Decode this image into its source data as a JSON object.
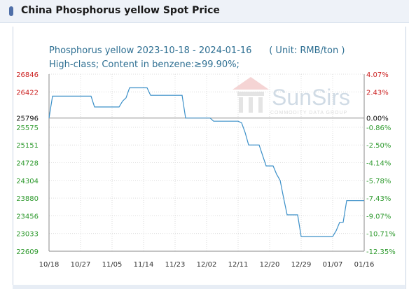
{
  "page": {
    "title": "China Phosphorus yellow Spot Price"
  },
  "chart_data": {
    "type": "line",
    "title": "Phosphorus yellow 2023-10-18 - 2024-01-16      ( Unit: RMB/ton )",
    "subtitle": "High-class; Content in benzene:≥99.90%;",
    "watermark": {
      "brand": "SunSirs",
      "tagline": "COMMODITY DATA GROUP"
    },
    "base_value": 25796,
    "x_ticks": [
      "10/18",
      "10/27",
      "11/05",
      "11/14",
      "11/23",
      "12/02",
      "12/11",
      "12/20",
      "12/29",
      "01/07",
      "01/16"
    ],
    "y_ticks_left": [
      "26846",
      "26422",
      "25796",
      "25575",
      "25151",
      "24728",
      "24304",
      "23880",
      "23456",
      "23033",
      "22609"
    ],
    "y_ticks_right": [
      "4.07%",
      "2.43%",
      "0.00%",
      "-0.86%",
      "-2.50%",
      "-4.14%",
      "-5.78%",
      "-7.43%",
      "-9.07%",
      "-10.71%",
      "-12.35%"
    ],
    "ylim": [
      22609,
      26846
    ],
    "xlim": [
      "2023-10-18",
      "2024-01-16"
    ],
    "grid": true,
    "colors": {
      "line": "#3a8fc8",
      "up_label": "#cc2222",
      "down_label": "#2e9a2e",
      "base_label": "#111111"
    },
    "series": [
      {
        "points": [
          [
            "2023-10-18",
            25796
          ],
          [
            "2023-10-19",
            26320
          ],
          [
            "2023-10-30",
            26320
          ],
          [
            "2023-10-31",
            26060
          ],
          [
            "2023-11-07",
            26060
          ],
          [
            "2023-11-08",
            26200
          ],
          [
            "2023-11-09",
            26280
          ],
          [
            "2023-11-10",
            26520
          ],
          [
            "2023-11-15",
            26520
          ],
          [
            "2023-11-16",
            26340
          ],
          [
            "2023-11-25",
            26340
          ],
          [
            "2023-11-26",
            25796
          ],
          [
            "2023-12-03",
            25796
          ],
          [
            "2023-12-04",
            25720
          ],
          [
            "2023-12-11",
            25720
          ],
          [
            "2023-12-12",
            25680
          ],
          [
            "2023-12-13",
            25450
          ],
          [
            "2023-12-14",
            25151
          ],
          [
            "2023-12-17",
            25151
          ],
          [
            "2023-12-18",
            24900
          ],
          [
            "2023-12-19",
            24650
          ],
          [
            "2023-12-21",
            24650
          ],
          [
            "2023-12-22",
            24450
          ],
          [
            "2023-12-23",
            24304
          ],
          [
            "2023-12-24",
            23880
          ],
          [
            "2023-12-25",
            23480
          ],
          [
            "2023-12-28",
            23480
          ],
          [
            "2023-12-29",
            22960
          ],
          [
            "2024-01-07",
            22960
          ],
          [
            "2024-01-08",
            23100
          ],
          [
            "2024-01-09",
            23300
          ],
          [
            "2024-01-10",
            23300
          ],
          [
            "2024-01-11",
            23820
          ],
          [
            "2024-01-16",
            23820
          ]
        ]
      }
    ]
  }
}
